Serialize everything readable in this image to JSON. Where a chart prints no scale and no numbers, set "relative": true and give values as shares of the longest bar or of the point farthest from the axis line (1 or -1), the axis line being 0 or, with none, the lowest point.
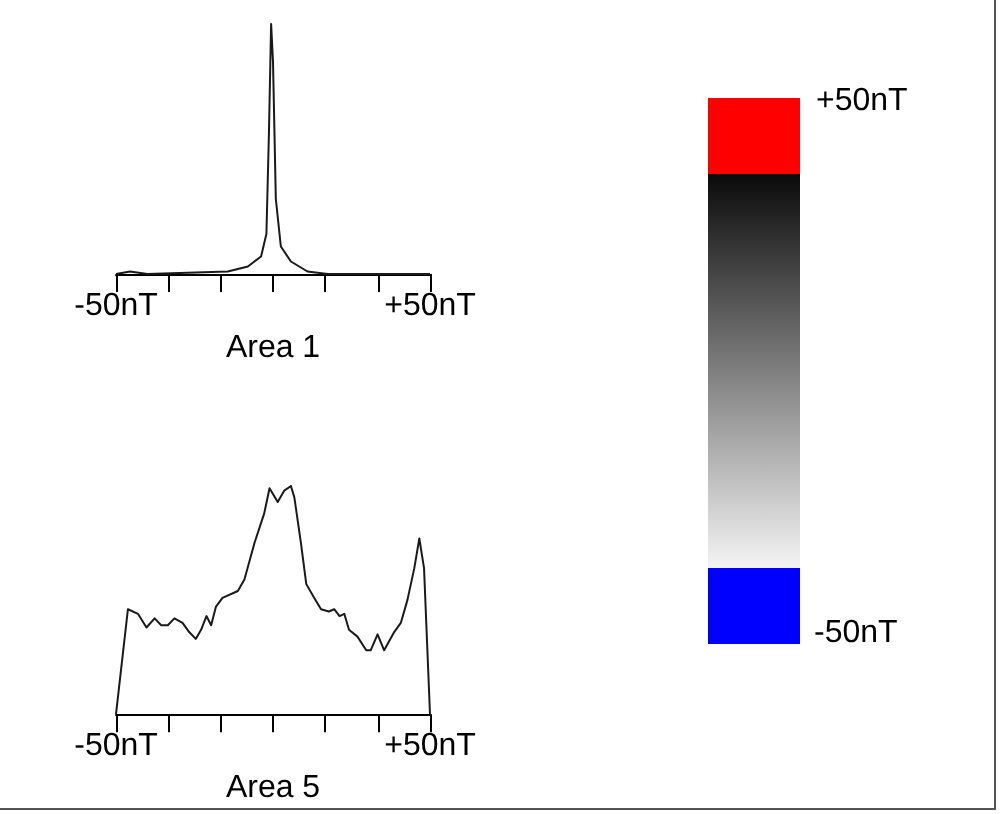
{
  "chart_data": [
    {
      "type": "line",
      "xlabel": "Area 1",
      "relative": true,
      "color": "#1a1a1a",
      "marker": "none",
      "line_style": "solid",
      "xlim": [
        -50,
        50
      ],
      "xticks": [
        {
          "value": -50,
          "label": "-50nT"
        },
        {
          "value": -33.33,
          "label": null
        },
        {
          "value": -16.67,
          "label": null
        },
        {
          "value": 0,
          "label": null
        },
        {
          "value": 16.67,
          "label": null
        },
        {
          "value": 33.33,
          "label": null
        },
        {
          "value": 50,
          "label": "+50nT"
        }
      ],
      "x": [
        -50,
        -45.5,
        -40,
        -14.4,
        -8,
        -3.8,
        -2.1,
        -1.3,
        -0.6,
        0,
        0.9,
        2.5,
        5.7,
        11,
        17.5,
        50
      ],
      "values": [
        0,
        0.01,
        0,
        0.01,
        0.03,
        0.07,
        0.16,
        0.56,
        1,
        0.85,
        0.3,
        0.11,
        0.05,
        0.01,
        0,
        0
      ]
    },
    {
      "type": "line",
      "xlabel": "Area 5",
      "relative": true,
      "color": "#1a1a1a",
      "marker": "none",
      "line_style": "solid",
      "xlim": [
        -50,
        50
      ],
      "xticks": [
        {
          "value": -50,
          "label": "-50nT"
        },
        {
          "value": -33.33,
          "label": null
        },
        {
          "value": -16.67,
          "label": null
        },
        {
          "value": 0,
          "label": null
        },
        {
          "value": 16.67,
          "label": null
        },
        {
          "value": 33.33,
          "label": null
        },
        {
          "value": 50,
          "label": "+50nT"
        }
      ],
      "x": [
        -50,
        -46.2,
        -43,
        -40.3,
        -37.7,
        -35.6,
        -33.5,
        -31.4,
        -28.8,
        -26.7,
        -24.6,
        -22.9,
        -21.2,
        -19.7,
        -18.2,
        -16.1,
        -11.2,
        -9.1,
        -5.9,
        -2.8,
        -1.1,
        1.5,
        3.6,
        5.7,
        6.8,
        8.9,
        10.6,
        13.1,
        15.3,
        17.8,
        19.5,
        21.2,
        22.7,
        24.2,
        26.9,
        29.7,
        31.1,
        33.3,
        35.4,
        38.6,
        40.7,
        42.8,
        45,
        46.6,
        48.1,
        50
      ],
      "values": [
        0,
        0.46,
        0.44,
        0.38,
        0.42,
        0.39,
        0.39,
        0.42,
        0.4,
        0.36,
        0.33,
        0.37,
        0.43,
        0.39,
        0.47,
        0.51,
        0.54,
        0.59,
        0.75,
        0.88,
        0.99,
        0.93,
        0.98,
        1,
        0.95,
        0.75,
        0.57,
        0.51,
        0.46,
        0.45,
        0.46,
        0.43,
        0.44,
        0.37,
        0.34,
        0.28,
        0.28,
        0.35,
        0.28,
        0.36,
        0.4,
        0.5,
        0.64,
        0.77,
        0.64,
        0
      ]
    },
    {
      "type": "other",
      "annotations": [
        "+50nT",
        "-50nT"
      ]
    }
  ]
}
